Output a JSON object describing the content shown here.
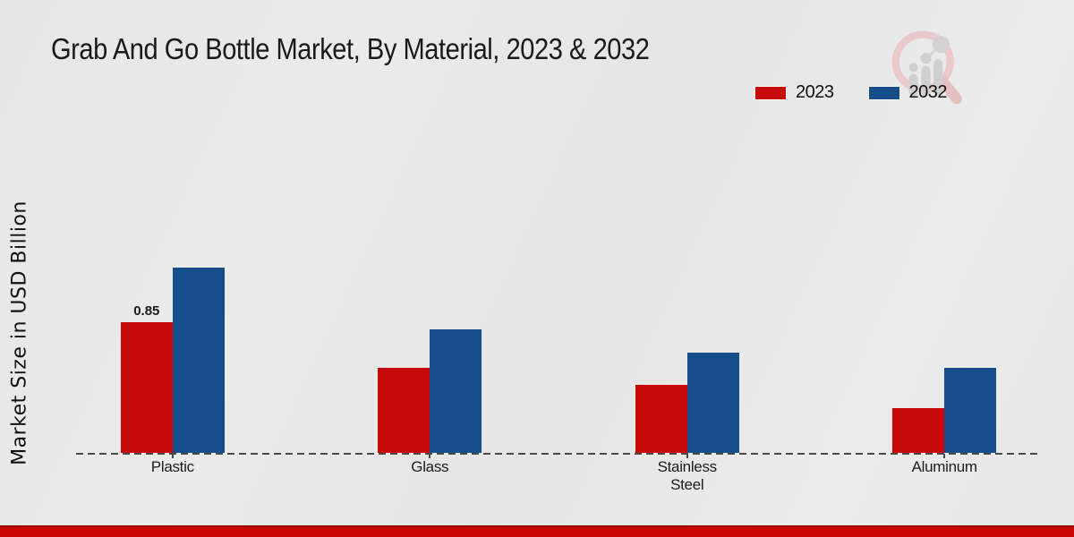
{
  "page": {
    "title": "Grab And Go Bottle Market, By Material, 2023 & 2032",
    "ylabel": "Market Size in USD Billion"
  },
  "legend": {
    "position": "top-right",
    "items": [
      {
        "label": "2023",
        "color": "#c80909"
      },
      {
        "label": "2032",
        "color": "#164e8c"
      }
    ]
  },
  "logo": {
    "name": "magnifier-bar-chart-watermark-logo",
    "ring_color": "#e9c6c6",
    "bars_color": "#cfcfcf"
  },
  "chart_data": {
    "type": "bar",
    "title": "Grab And Go Bottle Market, By Material, 2023 & 2032",
    "xlabel": "",
    "ylabel": "Market Size in USD Billion",
    "categories": [
      "Plastic",
      "Glass",
      "Stainless Steel",
      "Aluminum"
    ],
    "series": [
      {
        "name": "2023",
        "color": "#c80909",
        "values": [
          0.85,
          0.55,
          0.44,
          0.29
        ]
      },
      {
        "name": "2032",
        "color": "#164e8c",
        "values": [
          1.2,
          0.8,
          0.65,
          0.55
        ]
      }
    ],
    "bar_labels": [
      {
        "category_index": 0,
        "series_index": 0,
        "text": "0.85"
      }
    ],
    "ylim": [
      0,
      1.3
    ],
    "grid": false,
    "y_ticks_visible": false,
    "baseline_style": "dashed",
    "legend_position": "top-right"
  },
  "footer": {
    "strip_color": "#cb0404"
  }
}
